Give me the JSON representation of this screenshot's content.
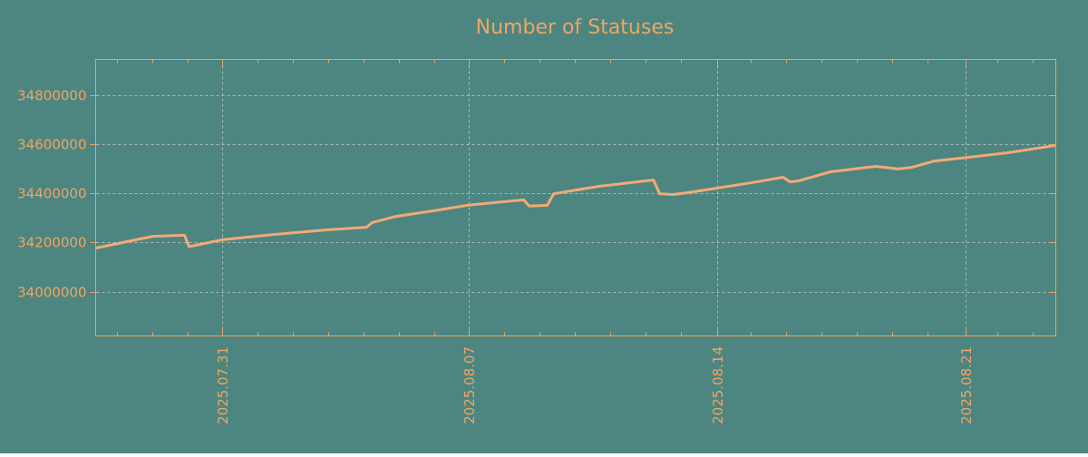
{
  "colors": {
    "background": "#4d8581",
    "accent_text": "#f0a661",
    "axis_border": "#eea25c",
    "line": "#f3aa74",
    "grid": "#a8bcb7"
  },
  "chart_data": {
    "type": "line",
    "title": "Number of Statuses",
    "xlabel": "",
    "ylabel": "",
    "legend": false,
    "grid": true,
    "grid_style": "dashed",
    "ylim": [
      33820000,
      34944000
    ],
    "xlim_days": [
      0,
      27.25
    ],
    "y_ticks": [
      {
        "value": 34000000,
        "label": "34000000"
      },
      {
        "value": 34200000,
        "label": "34200000"
      },
      {
        "value": 34400000,
        "label": "34400000"
      },
      {
        "value": 34600000,
        "label": "34600000"
      },
      {
        "value": 34800000,
        "label": "34800000"
      }
    ],
    "x_ticks": [
      {
        "day": 3.6,
        "label": "2025.07.31"
      },
      {
        "day": 10.6,
        "label": "2025.08.07"
      },
      {
        "day": 17.65,
        "label": "2025.08.14"
      },
      {
        "day": 24.7,
        "label": "2025.08.21"
      }
    ],
    "x_minor_tick_start_day": 0.6,
    "x_minor_tick_step_days": 1,
    "series": [
      {
        "name": "statuses",
        "points": [
          [
            0.0,
            34177000
          ],
          [
            1.62,
            34225000
          ],
          [
            2.44,
            34229000
          ],
          [
            2.52,
            34230000
          ],
          [
            2.65,
            34183000
          ],
          [
            3.6,
            34211000
          ],
          [
            5.02,
            34232000
          ],
          [
            6.56,
            34251000
          ],
          [
            7.69,
            34262000
          ],
          [
            7.85,
            34281000
          ],
          [
            8.49,
            34305000
          ],
          [
            9.65,
            34330000
          ],
          [
            10.6,
            34352000
          ],
          [
            12.15,
            34373000
          ],
          [
            12.3,
            34348000
          ],
          [
            12.82,
            34351000
          ],
          [
            13.0,
            34398000
          ],
          [
            14.28,
            34428000
          ],
          [
            15.83,
            34454000
          ],
          [
            16.01,
            34398000
          ],
          [
            16.39,
            34395000
          ],
          [
            16.78,
            34402000
          ],
          [
            17.65,
            34421000
          ],
          [
            18.66,
            34444000
          ],
          [
            19.51,
            34465000
          ],
          [
            19.71,
            34446000
          ],
          [
            19.95,
            34450000
          ],
          [
            20.85,
            34487000
          ],
          [
            22.13,
            34509000
          ],
          [
            22.77,
            34499000
          ],
          [
            23.16,
            34505000
          ],
          [
            23.8,
            34531000
          ],
          [
            24.71,
            34545000
          ],
          [
            25.86,
            34564000
          ],
          [
            27.23,
            34594000
          ]
        ]
      }
    ]
  },
  "layout_note": "single RRD-style line graph on teal background"
}
